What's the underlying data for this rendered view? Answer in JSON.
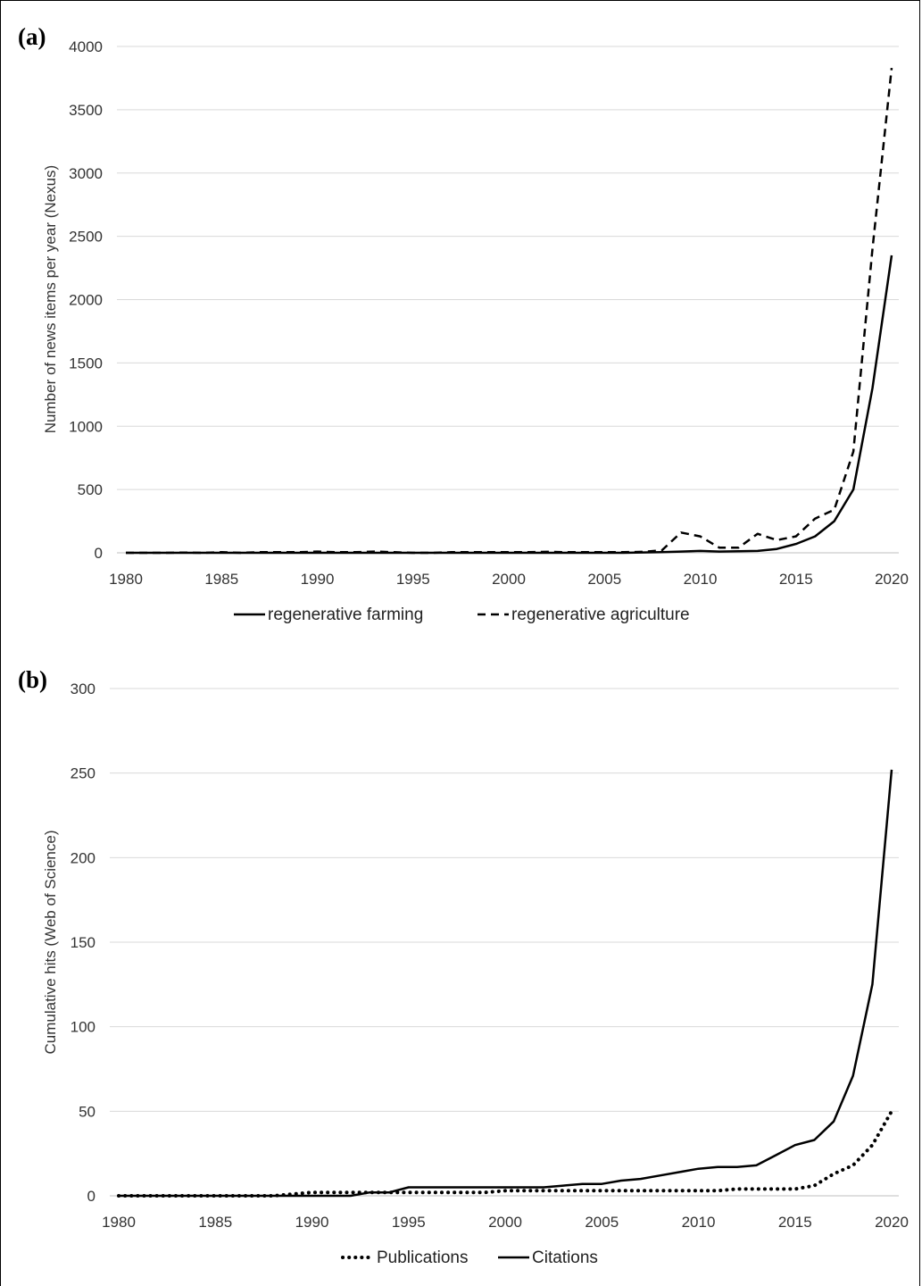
{
  "chart_data": [
    {
      "type": "line",
      "panel_label": "(a)",
      "ylabel": "Number of news items per year (Nexus)",
      "xlabel": "",
      "ylim": [
        0,
        4000
      ],
      "yticks": [
        0,
        500,
        1000,
        1500,
        2000,
        2500,
        3000,
        3500,
        4000
      ],
      "xticks": [
        1980,
        1985,
        1990,
        1995,
        2000,
        2005,
        2010,
        2015,
        2020
      ],
      "grid": true,
      "legend_position": "bottom",
      "x": [
        1980,
        1981,
        1982,
        1983,
        1984,
        1985,
        1986,
        1987,
        1988,
        1989,
        1990,
        1991,
        1992,
        1993,
        1994,
        1995,
        1996,
        1997,
        1998,
        1999,
        2000,
        2001,
        2002,
        2003,
        2004,
        2005,
        2006,
        2007,
        2008,
        2009,
        2010,
        2011,
        2012,
        2013,
        2014,
        2015,
        2016,
        2017,
        2018,
        2019,
        2020
      ],
      "series": [
        {
          "name": "regenerative farming",
          "style": "solid",
          "values": [
            0,
            0,
            0,
            0,
            0,
            0,
            0,
            0,
            0,
            0,
            0,
            0,
            0,
            0,
            0,
            0,
            0,
            0,
            0,
            0,
            0,
            0,
            0,
            0,
            0,
            0,
            0,
            3,
            5,
            10,
            15,
            10,
            12,
            15,
            30,
            70,
            130,
            250,
            500,
            1300,
            2350
          ]
        },
        {
          "name": "regenerative agriculture",
          "style": "dashed",
          "values": [
            0,
            0,
            0,
            2,
            0,
            5,
            0,
            5,
            5,
            5,
            10,
            5,
            5,
            10,
            5,
            0,
            0,
            5,
            5,
            5,
            5,
            5,
            8,
            5,
            5,
            5,
            5,
            8,
            20,
            160,
            130,
            40,
            40,
            150,
            100,
            130,
            270,
            340,
            800,
            2400,
            3830
          ]
        }
      ]
    },
    {
      "type": "line",
      "panel_label": "(b)",
      "ylabel": "Cumulative hits (Web of Science)",
      "xlabel": "",
      "ylim": [
        0,
        300
      ],
      "yticks": [
        0,
        50,
        100,
        150,
        200,
        250,
        300
      ],
      "xticks": [
        1980,
        1985,
        1990,
        1995,
        2000,
        2005,
        2010,
        2015,
        2020
      ],
      "grid": true,
      "legend_position": "bottom",
      "x": [
        1980,
        1981,
        1982,
        1983,
        1984,
        1985,
        1986,
        1987,
        1988,
        1989,
        1990,
        1991,
        1992,
        1993,
        1994,
        1995,
        1996,
        1997,
        1998,
        1999,
        2000,
        2001,
        2002,
        2003,
        2004,
        2005,
        2006,
        2007,
        2008,
        2009,
        2010,
        2011,
        2012,
        2013,
        2014,
        2015,
        2016,
        2017,
        2018,
        2019,
        2020
      ],
      "series": [
        {
          "name": "Publications",
          "style": "dotted",
          "values": [
            0,
            0,
            0,
            0,
            0,
            0,
            0,
            0,
            0,
            1,
            2,
            2,
            2,
            2,
            2,
            2,
            2,
            2,
            2,
            2,
            3,
            3,
            3,
            3,
            3,
            3,
            3,
            3,
            3,
            3,
            3,
            3,
            4,
            4,
            4,
            4,
            6,
            13,
            18,
            30,
            50
          ]
        },
        {
          "name": "Citations",
          "style": "solid",
          "values": [
            0,
            0,
            0,
            0,
            0,
            0,
            0,
            0,
            0,
            0,
            0,
            0,
            0,
            2,
            2,
            5,
            5,
            5,
            5,
            5,
            5,
            5,
            5,
            6,
            7,
            7,
            9,
            10,
            12,
            14,
            16,
            17,
            17,
            18,
            24,
            30,
            33,
            44,
            71,
            125,
            252
          ]
        }
      ]
    }
  ]
}
